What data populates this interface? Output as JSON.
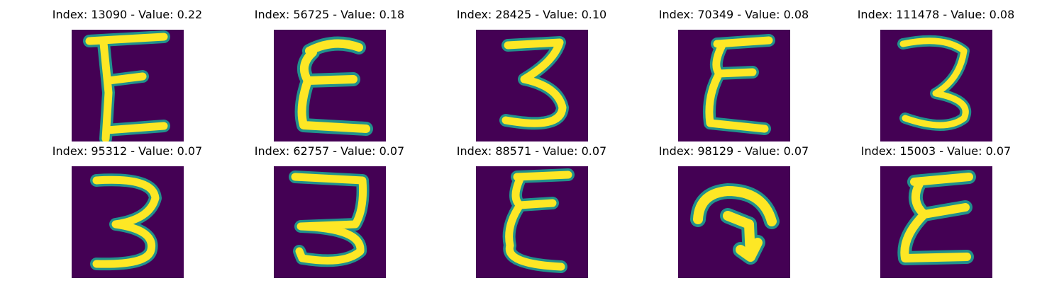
{
  "colors": {
    "background": "#440154",
    "mid": "#21918c",
    "high": "#fde725"
  },
  "samples": [
    {
      "title": "Index: 13090 - Value: 0.22",
      "digit": "E-shape"
    },
    {
      "title": "Index: 56725 - Value: 0.18",
      "digit": "E-shape"
    },
    {
      "title": "Index: 28425 - Value: 0.10",
      "digit": "3-shape"
    },
    {
      "title": "Index: 70349 - Value: 0.08",
      "digit": "E-shape"
    },
    {
      "title": "Index: 111478 - Value: 0.08",
      "digit": "3-shape"
    },
    {
      "title": "Index: 95312 - Value: 0.07",
      "digit": "3-shape"
    },
    {
      "title": "Index: 62757 - Value: 0.07",
      "digit": "3-shape"
    },
    {
      "title": "Index: 88571 - Value: 0.07",
      "digit": "E-shape"
    },
    {
      "title": "Index: 98129 - Value: 0.07",
      "digit": "arrow-shape"
    },
    {
      "title": "Index: 15003 - Value: 0.07",
      "digit": "E-shape"
    }
  ]
}
